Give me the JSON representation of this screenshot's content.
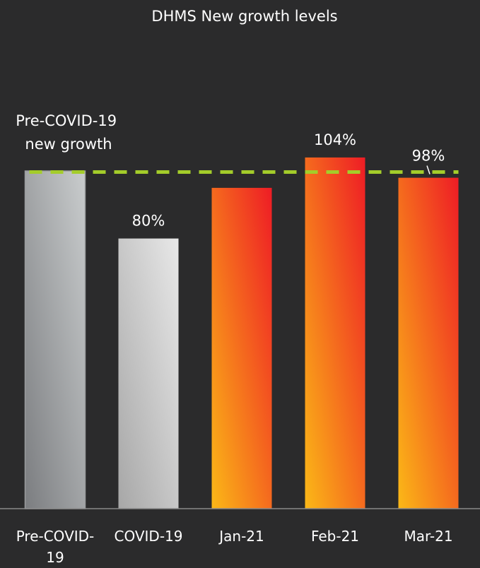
{
  "chart_data": {
    "type": "bar",
    "title": "DHMS New growth levels",
    "categories": [
      "Pre-COVID-19",
      "COVID-19",
      "Jan-21",
      "Feb-21",
      "Mar-21"
    ],
    "category_label_lines": [
      [
        "Pre-COVID-",
        "19"
      ],
      [
        "COVID-19"
      ],
      [
        "Jan-21"
      ],
      [
        "Feb-21"
      ],
      [
        "Mar-21"
      ]
    ],
    "values": [
      100,
      80,
      95,
      104,
      98
    ],
    "data_labels": [
      "",
      "80%",
      "",
      "104%",
      "98%"
    ],
    "reference_line": {
      "value": 100,
      "label_lines": [
        "Pre-COVID-19",
        "new growth"
      ],
      "color": "#a4cc2a",
      "style": "dashed"
    },
    "ylim": [
      0,
      140
    ],
    "xlabel": "",
    "ylabel": "",
    "grid": false,
    "legend": "none",
    "colors": {
      "background": "#2b2b2c",
      "text": "#ffffff",
      "baseline": "#8a8a8a",
      "pre_covid_gradient": [
        "#7b7d80",
        "#c9cccd"
      ],
      "covid_gradient": [
        "#a7a7a7",
        "#e8e8e8"
      ],
      "recent_gradient": [
        "#fbb817",
        "#ee1c25"
      ]
    }
  }
}
